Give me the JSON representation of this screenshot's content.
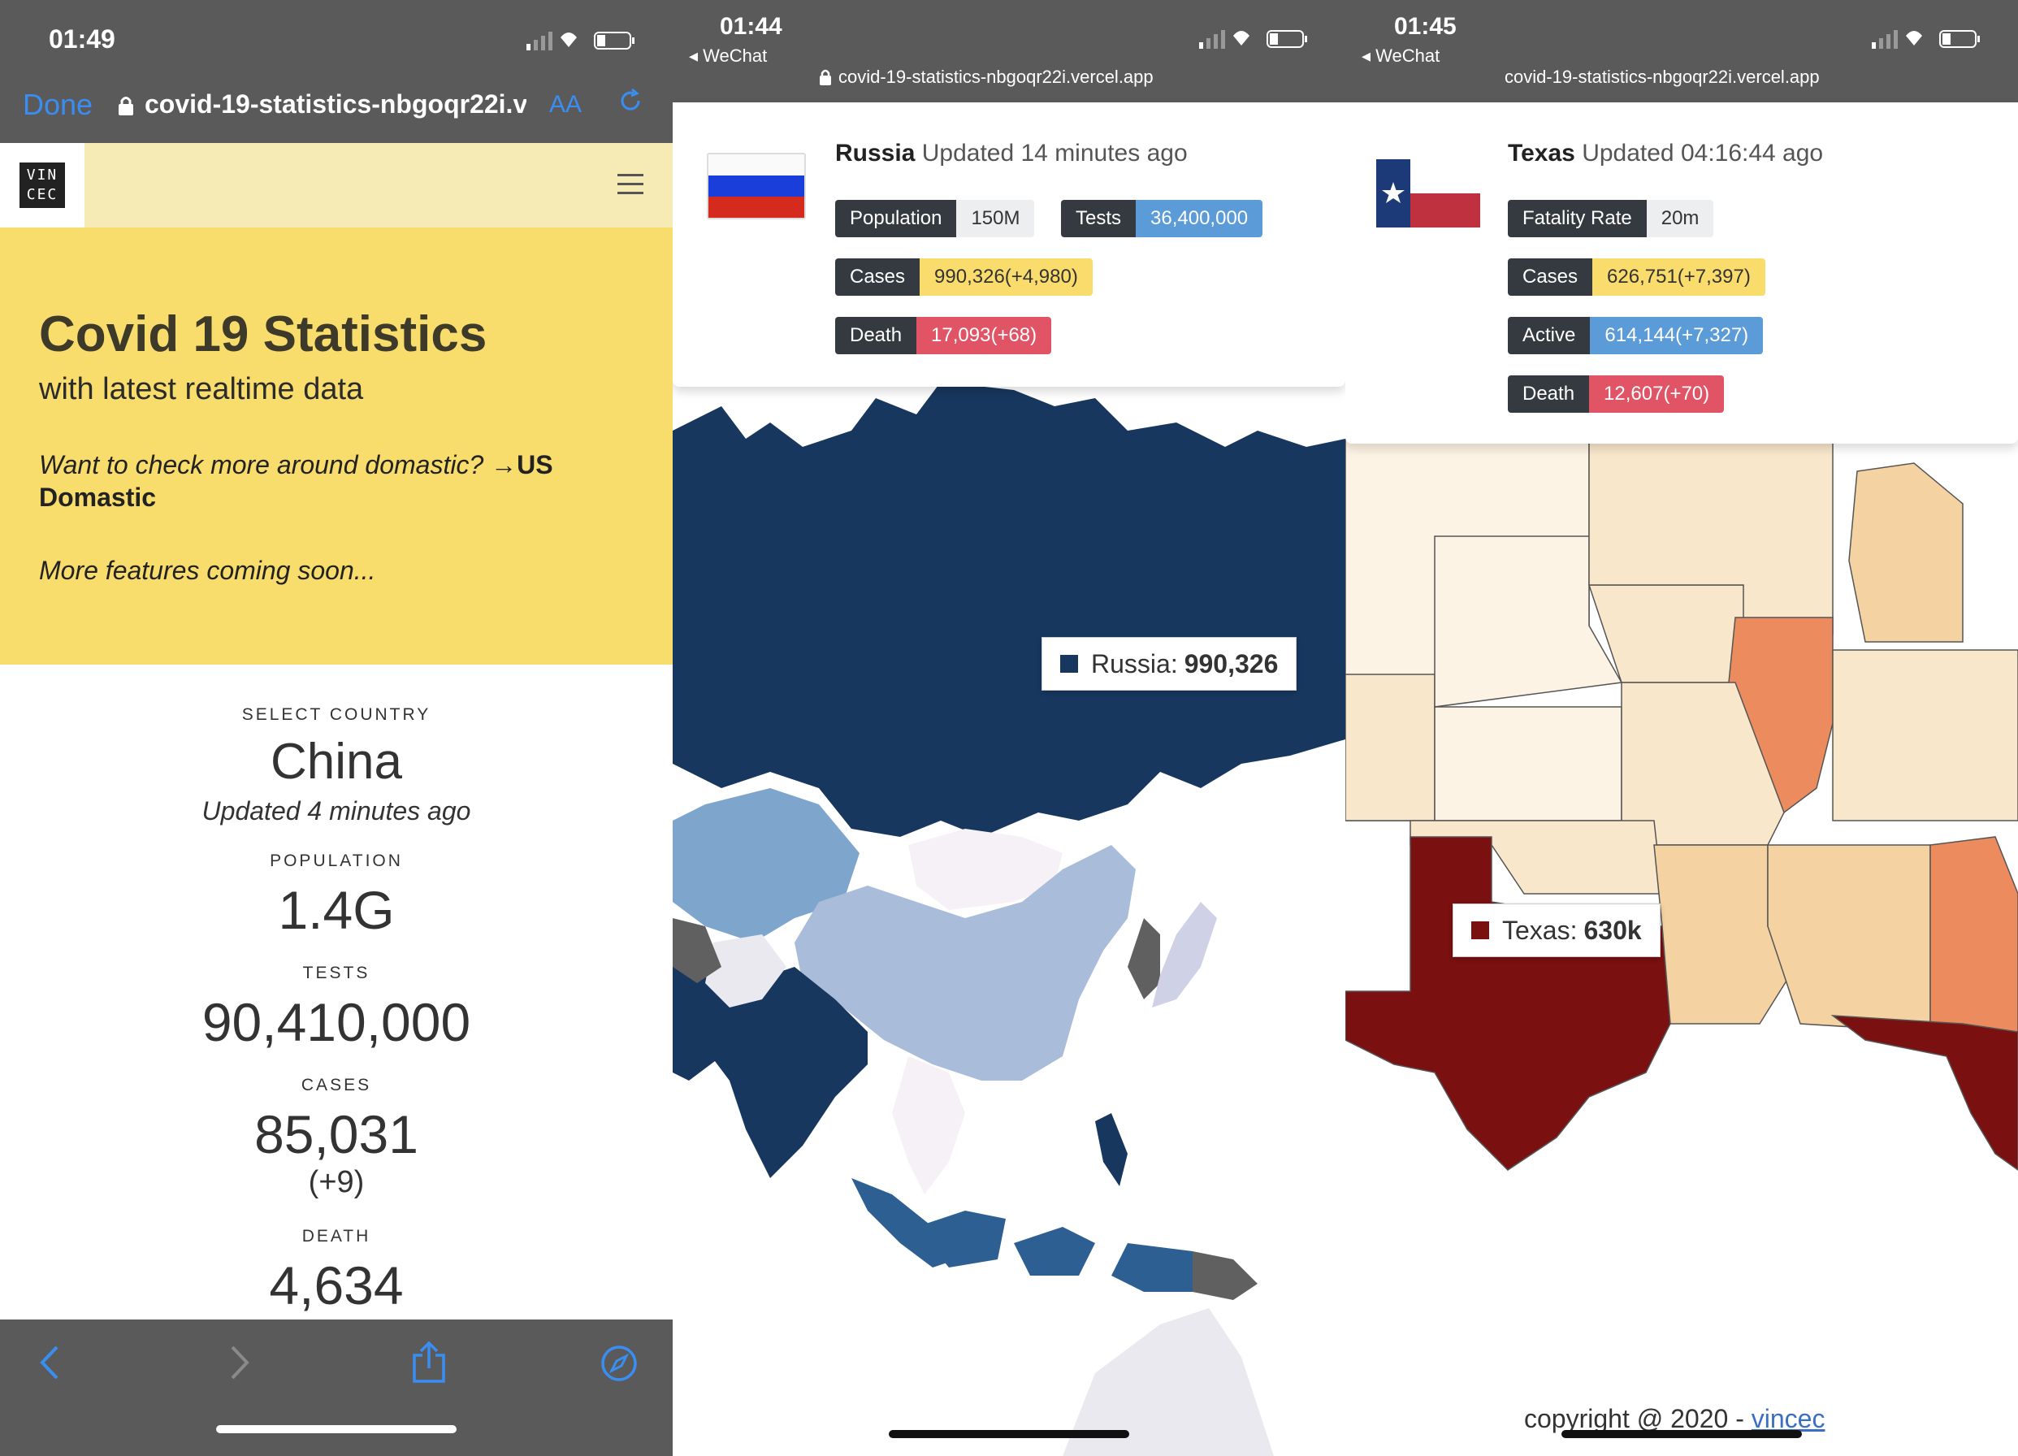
{
  "panel1": {
    "status_time": "01:49",
    "done_label": "Done",
    "url": "covid-19-statistics-nbgoqr22i.v",
    "aa_label": "AA",
    "logo_text_1": "VIN",
    "logo_text_2": "CEC",
    "hero": {
      "title": "Covid 19 Statistics",
      "subtitle": "with latest realtime data",
      "want_text": "Want to check more around domastic?",
      "us_link": "US",
      "domastic_link": "Domastic",
      "more_text": "More features coming soon..."
    },
    "stats": {
      "select_label": "SELECT COUNTRY",
      "country": "China",
      "updated": "Updated 4 minutes ago",
      "population_label": "POPULATION",
      "population": "1.4G",
      "tests_label": "TESTS",
      "tests": "90,410,000",
      "cases_label": "CASES",
      "cases": "85,031",
      "cases_delta": "(+9)",
      "death_label": "DEATH",
      "death": "4,634"
    }
  },
  "panel2": {
    "status_time": "01:44",
    "back_app": "◂ WeChat",
    "url": "covid-19-statistics-nbgoqr22i.vercel.app",
    "country": "Russia",
    "updated": "Updated 14 minutes ago",
    "badges": {
      "population_k": "Population",
      "population_v": "150M",
      "tests_k": "Tests",
      "tests_v": "36,400,000",
      "cases_k": "Cases",
      "cases_v": "990,326(+4,980)",
      "death_k": "Death",
      "death_v": "17,093(+68)"
    },
    "tooltip_label": "Russia:",
    "tooltip_value": "990,326",
    "colors": {
      "dark": "#17375e",
      "mid": "#2e5f93",
      "light": "#a9bcd9",
      "pale": "#f6f1f6"
    }
  },
  "panel3": {
    "status_time": "01:45",
    "back_app": "◂ WeChat",
    "url": "covid-19-statistics-nbgoqr22i.vercel.app",
    "country": "Texas",
    "updated": "Updated 04:16:44 ago",
    "badges": {
      "fatality_k": "Fatality Rate",
      "fatality_v": "20m",
      "cases_k": "Cases",
      "cases_v": "626,751(+7,397)",
      "active_k": "Active",
      "active_v": "614,144(+7,327)",
      "death_k": "Death",
      "death_v": "12,607(+70)"
    },
    "tooltip_label": "Texas:",
    "tooltip_value": "630k",
    "copyright": "copyright @ 2020 - ",
    "copyright_link": "vincec",
    "colors": {
      "dark": "#7a1010",
      "orange": "#ec8c5e",
      "tan": "#f5d2a1",
      "pale": "#f9e7cb"
    }
  }
}
